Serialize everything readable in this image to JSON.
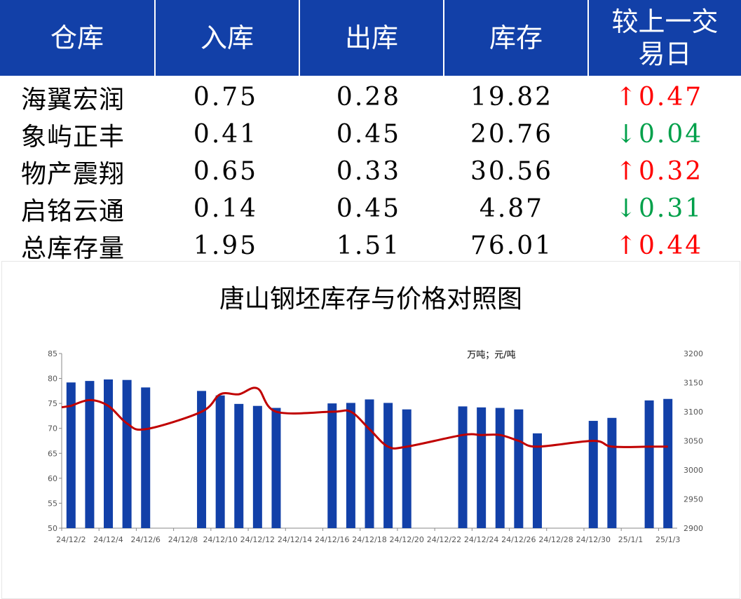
{
  "table": {
    "headers": [
      "仓库",
      "入库",
      "出库",
      "库存",
      "较上一交易日"
    ],
    "rows": [
      {
        "name": "海翼宏润",
        "in": "0.75",
        "out": "0.28",
        "stock": "19.82",
        "dir": "up",
        "arrow": "↑",
        "change": "0.47"
      },
      {
        "name": "象屿正丰",
        "in": "0.41",
        "out": "0.45",
        "stock": "20.76",
        "dir": "down",
        "arrow": "↓",
        "change": "0.04"
      },
      {
        "name": "物产震翔",
        "in": "0.65",
        "out": "0.33",
        "stock": "30.56",
        "dir": "up",
        "arrow": "↑",
        "change": "0.32"
      },
      {
        "name": "启铭云通",
        "in": "0.14",
        "out": "0.45",
        "stock": "4.87",
        "dir": "down",
        "arrow": "↓",
        "change": "0.31"
      },
      {
        "name": "总库存量",
        "in": "1.95",
        "out": "1.51",
        "stock": "76.01",
        "dir": "up",
        "arrow": "↑",
        "change": "0.44"
      }
    ],
    "colors": {
      "header": "#1240a8",
      "up": "#ff0000",
      "down": "#00a04a"
    }
  },
  "chart_data": {
    "type": "bar+line",
    "title": "唐山钢坯库存与价格对照图",
    "unit_label": "万吨；元/吨",
    "x_categories_all": [
      "24/12/2",
      "24/12/3",
      "24/12/4",
      "24/12/5",
      "24/12/6",
      "24/12/7",
      "24/12/8",
      "24/12/9",
      "24/12/10",
      "24/12/11",
      "24/12/12",
      "24/12/13",
      "24/12/14",
      "24/12/15",
      "24/12/16",
      "24/12/17",
      "24/12/18",
      "24/12/19",
      "24/12/20",
      "24/12/21",
      "24/12/22",
      "24/12/23",
      "24/12/24",
      "24/12/25",
      "24/12/26",
      "24/12/27",
      "24/12/28",
      "24/12/29",
      "24/12/30",
      "24/12/31",
      "25/1/1",
      "25/1/2",
      "25/1/3"
    ],
    "x_tick_labels": [
      "24/12/2",
      "24/12/4",
      "24/12/6",
      "24/12/8",
      "24/12/10",
      "24/12/12",
      "24/12/14",
      "24/12/16",
      "24/12/18",
      "24/12/20",
      "24/12/22",
      "24/12/24",
      "24/12/26",
      "24/12/28",
      "24/12/30",
      "25/1/1",
      "25/1/3"
    ],
    "y_left": {
      "min": 50,
      "max": 85,
      "ticks": [
        50,
        55,
        60,
        65,
        70,
        75,
        80,
        85
      ]
    },
    "y_right": {
      "min": 2900,
      "max": 3200,
      "ticks": [
        2900,
        2950,
        3000,
        3050,
        3100,
        3150,
        3200
      ]
    },
    "series": [
      {
        "kind": "bar",
        "axis": "left",
        "color": "#1240a8",
        "points": [
          [
            "24/12/2",
            79.2
          ],
          [
            "24/12/3",
            79.5
          ],
          [
            "24/12/4",
            79.8
          ],
          [
            "24/12/5",
            79.7
          ],
          [
            "24/12/6",
            78.2
          ],
          [
            "24/12/9",
            77.5
          ],
          [
            "24/12/10",
            76.6
          ],
          [
            "24/12/11",
            74.9
          ],
          [
            "24/12/12",
            74.5
          ],
          [
            "24/12/13",
            74.1
          ],
          [
            "24/12/16",
            75.0
          ],
          [
            "24/12/17",
            75.1
          ],
          [
            "24/12/18",
            75.8
          ],
          [
            "24/12/19",
            75.1
          ],
          [
            "24/12/20",
            73.8
          ],
          [
            "24/12/23",
            74.4
          ],
          [
            "24/12/24",
            74.2
          ],
          [
            "24/12/25",
            74.1
          ],
          [
            "24/12/26",
            73.8
          ],
          [
            "24/12/27",
            69.0
          ],
          [
            "24/12/30",
            71.5
          ],
          [
            "24/12/31",
            72.1
          ],
          [
            "25/1/2",
            75.6
          ],
          [
            "25/1/3",
            75.9
          ]
        ]
      },
      {
        "kind": "line",
        "axis": "right",
        "color": "#c00000",
        "points": [
          [
            "24/12/2",
            3110
          ],
          [
            "24/12/3",
            3120
          ],
          [
            "24/12/4",
            3110
          ],
          [
            "24/12/5",
            3080
          ],
          [
            "24/12/6",
            3070
          ],
          [
            "24/12/9",
            3100
          ],
          [
            "24/12/10",
            3130
          ],
          [
            "24/12/11",
            3130
          ],
          [
            "24/12/12",
            3140
          ],
          [
            "24/12/13",
            3100
          ],
          [
            "24/12/16",
            3100
          ],
          [
            "24/12/17",
            3100
          ],
          [
            "24/12/18",
            3070
          ],
          [
            "24/12/19",
            3040
          ],
          [
            "24/12/20",
            3040
          ],
          [
            "24/12/23",
            3060
          ],
          [
            "24/12/24",
            3060
          ],
          [
            "24/12/25",
            3060
          ],
          [
            "24/12/26",
            3050
          ],
          [
            "24/12/27",
            3040
          ],
          [
            "24/12/30",
            3050
          ],
          [
            "24/12/31",
            3040
          ],
          [
            "25/1/2",
            3040
          ],
          [
            "25/1/3",
            3040
          ]
        ]
      }
    ],
    "grid": false,
    "legend": "none"
  }
}
